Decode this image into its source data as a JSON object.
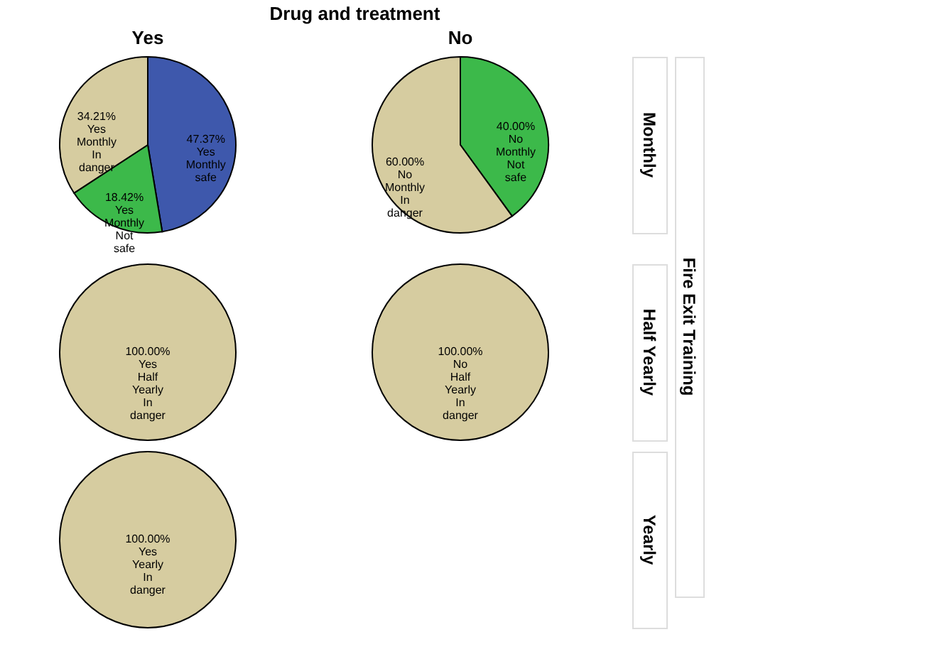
{
  "chart_data": [
    {
      "type": "other",
      "title": "Drug and treatment",
      "ylabel": "Fire Exit Training"
    },
    {
      "type": "pie",
      "title": "Yes",
      "categories": [
        "Yes Monthly safe",
        "Yes Monthly Not safe",
        "Yes Monthly In danger"
      ],
      "values": [
        47.37,
        18.42,
        34.21
      ],
      "colors": [
        "#3e58ac",
        "#3cb94a",
        "#d6cca0"
      ],
      "value_labels": [
        "47.37%",
        "18.42%",
        "34.21%"
      ]
    },
    {
      "type": "pie",
      "title": "No",
      "y2label": "Monthly",
      "categories": [
        "No Monthly Not safe",
        "No Monthly In danger"
      ],
      "values": [
        40.0,
        60.0
      ],
      "colors": [
        "#3cb94a",
        "#d6cca0"
      ],
      "value_labels": [
        "40.00%",
        "60.00%"
      ]
    },
    {
      "type": "pie",
      "categories": [
        "Yes Half Yearly In danger"
      ],
      "values": [
        100.0
      ],
      "colors": [
        "#d6cca0"
      ],
      "value_labels": [
        "100.00%"
      ]
    },
    {
      "type": "pie",
      "y2label": "Half Yearly",
      "categories": [
        "No Half Yearly In danger"
      ],
      "values": [
        100.0
      ],
      "colors": [
        "#d6cca0"
      ],
      "value_labels": [
        "100.00%"
      ]
    },
    {
      "type": "pie",
      "y2label": "Yearly",
      "categories": [
        "Yes Yearly In danger"
      ],
      "values": [
        100.0
      ],
      "colors": [
        "#d6cca0"
      ],
      "value_labels": [
        "100.00%"
      ]
    }
  ]
}
